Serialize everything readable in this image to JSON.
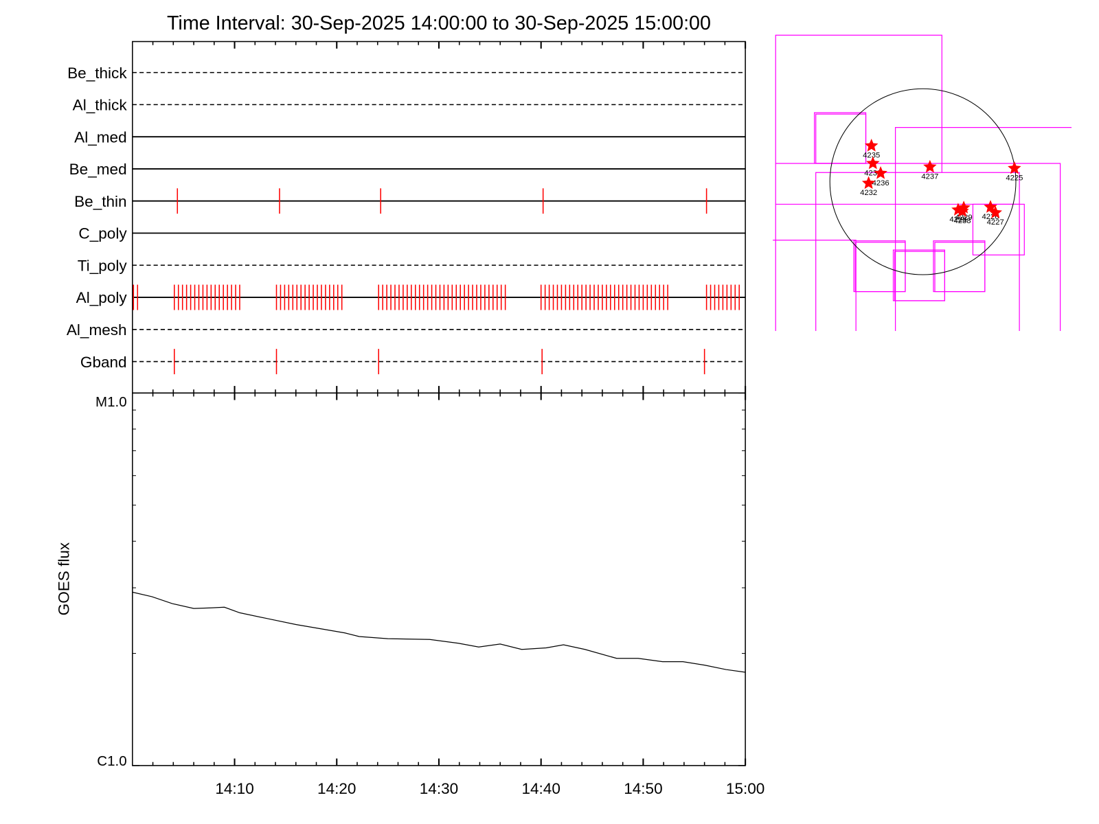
{
  "chart_data": [
    {
      "type": "timeline",
      "title": "Time Interval: 30-Sep-2025 14:00:00 to 30-Sep-2025 15:00:00",
      "categories": [
        "Be_thick",
        "Al_thick",
        "Al_med",
        "Be_med",
        "Be_thin",
        "C_poly",
        "Ti_poly",
        "Al_poly",
        "Al_mesh",
        "Gband"
      ],
      "line_styles": [
        "dashed",
        "dashed",
        "solid",
        "solid",
        "solid",
        "solid",
        "dashed",
        "solid",
        "dashed",
        "dashed"
      ],
      "event_color": "#ff0000",
      "event_times": [
        [],
        [],
        [],
        [],
        [
          4.4,
          14.4,
          24.3,
          40.2,
          56.2
        ],
        [],
        [],
        [
          0.1,
          0.5,
          4.1,
          4.5,
          4.9,
          5.3,
          5.7,
          6.1,
          6.5,
          6.9,
          7.3,
          7.7,
          8.1,
          8.5,
          8.9,
          9.3,
          9.7,
          10.1,
          10.5,
          14.1,
          14.5,
          14.9,
          15.3,
          15.7,
          16.1,
          16.5,
          16.9,
          17.3,
          17.7,
          18.1,
          18.5,
          18.9,
          19.3,
          19.7,
          20.1,
          20.5,
          24.1,
          24.5,
          24.9,
          25.3,
          25.7,
          26.1,
          26.5,
          26.9,
          27.3,
          27.7,
          28.1,
          28.5,
          28.9,
          29.3,
          29.7,
          30.1,
          30.5,
          30.9,
          31.3,
          31.7,
          32.1,
          32.5,
          32.9,
          33.3,
          33.7,
          34.1,
          34.5,
          34.9,
          35.3,
          35.7,
          36.1,
          36.5,
          40.0,
          40.4,
          40.8,
          41.2,
          41.6,
          42.0,
          42.4,
          42.8,
          43.2,
          43.6,
          44.0,
          44.4,
          44.8,
          45.2,
          45.6,
          46.0,
          46.4,
          46.8,
          47.2,
          47.6,
          48.0,
          48.4,
          48.8,
          49.2,
          49.6,
          50.0,
          50.4,
          50.8,
          51.2,
          51.6,
          52.0,
          52.4,
          56.2,
          56.6,
          57.0,
          57.4,
          57.8,
          58.2,
          58.6,
          59.0,
          59.4
        ],
        [],
        [
          4.1,
          14.1,
          24.1,
          40.1,
          56.0
        ]
      ],
      "xlim": [
        0,
        60
      ]
    },
    {
      "type": "line",
      "ylabel": "GOES flux",
      "color": "#000000",
      "log_y": true,
      "x": [
        0,
        1.9,
        3.9,
        6.0,
        7.7,
        9.0,
        10.5,
        13.2,
        16.0,
        18.8,
        20.8,
        22.2,
        25.0,
        29.1,
        31.9,
        33.9,
        36.0,
        38.1,
        40.5,
        42.2,
        44.3,
        47.4,
        49.5,
        51.9,
        53.9,
        56.0,
        58.1,
        60
      ],
      "values": [
        2.92e-06,
        2.84e-06,
        2.72e-06,
        2.64e-06,
        2.65e-06,
        2.66e-06,
        2.57e-06,
        2.48e-06,
        2.39e-06,
        2.32e-06,
        2.27e-06,
        2.22e-06,
        2.19e-06,
        2.18e-06,
        2.13e-06,
        2.08e-06,
        2.12e-06,
        2.05e-06,
        2.07e-06,
        2.11e-06,
        2.05e-06,
        1.94e-06,
        1.94e-06,
        1.9e-06,
        1.9e-06,
        1.86e-06,
        1.81e-06,
        1.78e-06
      ],
      "ylim": [
        1e-06,
        1e-05
      ],
      "yticks": [
        {
          "value": 1e-06,
          "label": "C1.0"
        },
        {
          "value": 1e-05,
          "label": "M1.0"
        }
      ],
      "yminorticks": [
        2e-06,
        3e-06,
        4e-06,
        5e-06,
        6e-06,
        7e-06,
        8e-06,
        9e-06
      ],
      "xlim": [
        0,
        60
      ],
      "xticks": [
        {
          "value": 10,
          "label": "14:10"
        },
        {
          "value": 20,
          "label": "14:20"
        },
        {
          "value": 30,
          "label": "14:30"
        },
        {
          "value": 40,
          "label": "14:40"
        },
        {
          "value": 50,
          "label": "14:50"
        },
        {
          "value": 60,
          "label": "15:00"
        }
      ],
      "xminorticks": [
        2,
        4,
        6,
        8,
        12,
        14,
        16,
        18,
        22,
        24,
        26,
        28,
        32,
        34,
        36,
        38,
        42,
        44,
        46,
        48,
        52,
        54,
        56,
        58
      ]
    },
    {
      "type": "map",
      "color": "#ff0000",
      "labels": [
        "4235",
        "4239",
        "4236",
        "4232",
        "4237",
        "4225",
        "4229",
        "4228",
        "4238",
        "4226",
        "4227"
      ],
      "x": [
        -531,
        -516,
        -436,
        -560,
        73,
        945,
        422,
        364,
        407,
        698,
        749
      ],
      "y": [
        371,
        189,
        87,
        -15,
        153,
        138,
        -269,
        -291,
        -305,
        -262,
        -320
      ]
    }
  ]
}
